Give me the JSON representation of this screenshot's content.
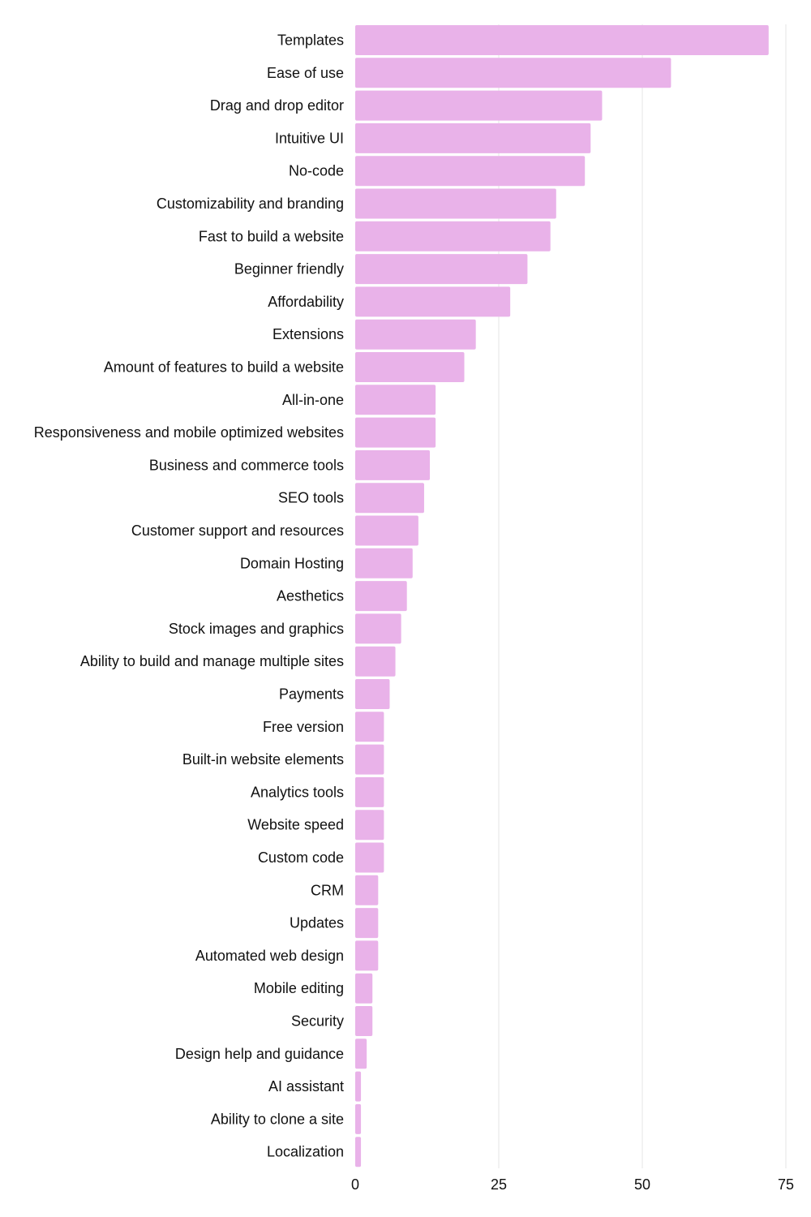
{
  "chart_data": {
    "type": "bar",
    "orientation": "horizontal",
    "title": "",
    "xlabel": "",
    "ylabel": "",
    "xlim": [
      0,
      75
    ],
    "xticks": [
      0,
      25,
      50,
      75
    ],
    "grid": true,
    "bar_color": "#e9b2e9",
    "categories": [
      "Templates",
      "Ease of use",
      "Drag and drop editor",
      "Intuitive UI",
      "No-code",
      "Customizability and branding",
      "Fast to build a website",
      "Beginner friendly",
      "Affordability",
      "Extensions",
      "Amount of features to build a website",
      "All-in-one",
      "Responsiveness and mobile optimized websites",
      "Business and commerce tools",
      "SEO tools",
      "Customer support and resources",
      "Domain Hosting",
      "Aesthetics",
      "Stock images and graphics",
      "Ability to build and manage multiple sites",
      "Payments",
      "Free version",
      "Built-in website elements",
      "Analytics tools",
      "Website speed",
      "Custom code",
      "CRM",
      "Updates",
      "Automated web design",
      "Mobile editing",
      "Security",
      "Design help and guidance",
      "AI assistant",
      "Ability to clone a site",
      "Localization"
    ],
    "values": [
      72,
      55,
      43,
      41,
      40,
      35,
      34,
      30,
      27,
      21,
      19,
      14,
      14,
      13,
      12,
      11,
      10,
      9,
      8,
      7,
      6,
      5,
      5,
      5,
      5,
      5,
      4,
      4,
      4,
      3,
      3,
      2,
      1,
      1,
      1
    ]
  }
}
